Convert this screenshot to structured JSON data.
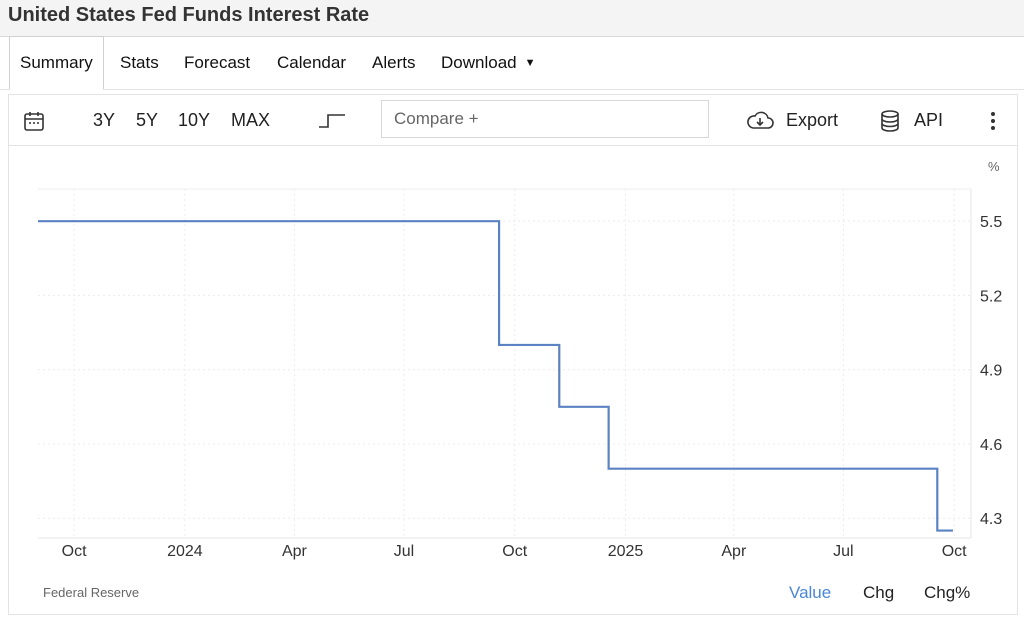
{
  "title": "United States Fed Funds Interest Rate",
  "tabs": [
    {
      "label": "Summary",
      "active": true
    },
    {
      "label": "Stats"
    },
    {
      "label": "Forecast"
    },
    {
      "label": "Calendar"
    },
    {
      "label": "Alerts"
    },
    {
      "label": "Download",
      "dropdown": true
    }
  ],
  "toolbar": {
    "calendar_icon": "calendar-icon",
    "ranges": [
      "3Y",
      "5Y",
      "10Y",
      "MAX"
    ],
    "step_icon": "step-chart-icon",
    "compare_placeholder": "Compare +",
    "export_label": "Export",
    "export_icon": "cloud-download-icon",
    "api_label": "API",
    "api_icon": "database-icon",
    "more_icon": "vertical-dots-icon"
  },
  "chart_data": {
    "type": "line",
    "step": true,
    "unit_label": "%",
    "color": "#5b82c2",
    "x_tick_labels": [
      "Oct",
      "2024",
      "Apr",
      "Jul",
      "Oct",
      "2025",
      "Apr",
      "Jul",
      "Oct"
    ],
    "x_tick_dates": [
      "2023-10-01",
      "2024-01-01",
      "2024-04-01",
      "2024-07-01",
      "2024-10-01",
      "2025-01-01",
      "2025-04-01",
      "2025-07-01",
      "2025-10-01"
    ],
    "xlim": [
      "2023-09-01",
      "2025-10-15"
    ],
    "y_ticks": [
      5.5,
      5.2,
      4.9,
      4.6,
      4.3
    ],
    "ylim": [
      4.22,
      5.63
    ],
    "grid": true,
    "series": [
      {
        "x": [
          "2023-09-01",
          "2024-09-18",
          "2024-11-07",
          "2024-12-18",
          "2025-09-17",
          "2025-09-30"
        ],
        "y": [
          5.5,
          5.0,
          4.75,
          4.5,
          4.25,
          4.25
        ]
      }
    ]
  },
  "source": "Federal Reserve",
  "footer_tabs": [
    {
      "label": "Value",
      "active": true,
      "color": "#4a86d6"
    },
    {
      "label": "Chg"
    },
    {
      "label": "Chg%"
    }
  ]
}
